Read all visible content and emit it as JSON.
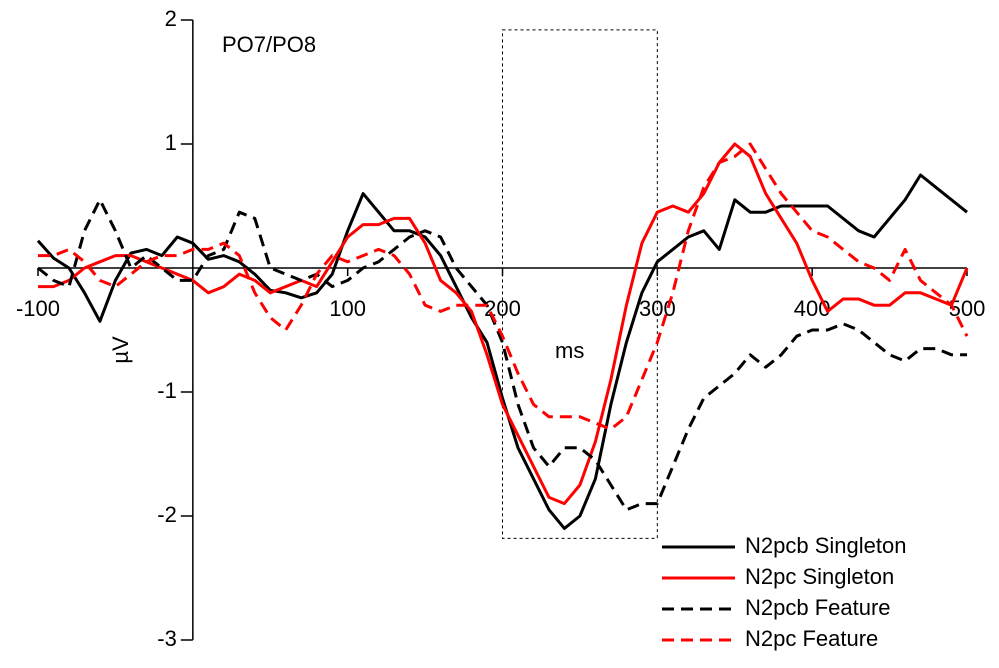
{
  "chart_data": {
    "type": "line",
    "title": "PO7/PO8",
    "x_label": "ms",
    "y_label": "µV",
    "x": [
      -100,
      -90,
      -80,
      -70,
      -60,
      -50,
      -40,
      -30,
      -20,
      -10,
      0,
      10,
      20,
      30,
      40,
      50,
      60,
      70,
      80,
      90,
      100,
      110,
      120,
      130,
      140,
      150,
      160,
      170,
      180,
      190,
      200,
      210,
      220,
      230,
      240,
      250,
      260,
      270,
      280,
      290,
      300,
      310,
      320,
      330,
      340,
      350,
      360,
      370,
      380,
      390,
      400,
      410,
      420,
      430,
      440,
      450,
      460,
      470,
      480,
      490,
      500
    ],
    "xlim": [
      -100,
      500
    ],
    "xticks": [
      -100,
      100,
      200,
      300,
      400,
      500
    ],
    "ylim": [
      -3,
      2
    ],
    "yticks": [
      -3,
      -2,
      -1,
      1,
      2
    ],
    "highlight": {
      "xlim": [
        200,
        300
      ],
      "ylim": [
        -2.18,
        1.92
      ]
    },
    "series": [
      {
        "name": "N2pcb Singleton",
        "color": "#000000",
        "dashed": false,
        "values": [
          0.22,
          0.08,
          0,
          -0.2,
          -0.43,
          -0.1,
          0.12,
          0.15,
          0.1,
          0.25,
          0.2,
          0.07,
          0.1,
          0.05,
          -0.05,
          -0.18,
          -0.2,
          -0.24,
          -0.2,
          -0.05,
          0.3,
          0.6,
          0.45,
          0.3,
          0.3,
          0.25,
          0.1,
          -0.15,
          -0.4,
          -0.6,
          -1.05,
          -1.45,
          -1.7,
          -1.95,
          -2.1,
          -2.0,
          -1.7,
          -1.1,
          -0.6,
          -0.2,
          0.05,
          0.15,
          0.25,
          0.3,
          0.15,
          0.55,
          0.45,
          0.45,
          0.5,
          0.5,
          0.5,
          0.5,
          0.4,
          0.3,
          0.25,
          0.4,
          0.55,
          0.75,
          0.65,
          0.55,
          0.45
        ]
      },
      {
        "name": "N2pc Singleton",
        "color": "#ff0000",
        "dashed": false,
        "values": [
          -0.15,
          -0.15,
          -0.1,
          0,
          0.05,
          0.1,
          0.1,
          0.05,
          0,
          -0.05,
          -0.1,
          -0.2,
          -0.15,
          -0.05,
          -0.1,
          -0.2,
          -0.15,
          -0.1,
          -0.15,
          0.05,
          0.25,
          0.35,
          0.35,
          0.4,
          0.4,
          0.2,
          -0.1,
          -0.2,
          -0.35,
          -0.7,
          -1.1,
          -1.35,
          -1.6,
          -1.85,
          -1.9,
          -1.75,
          -1.4,
          -0.9,
          -0.3,
          0.2,
          0.45,
          0.5,
          0.45,
          0.6,
          0.85,
          1.0,
          0.9,
          0.6,
          0.4,
          0.2,
          -0.1,
          -0.35,
          -0.25,
          -0.25,
          -0.3,
          -0.3,
          -0.2,
          -0.2,
          -0.25,
          -0.3,
          0
        ]
      },
      {
        "name": "N2pcb Feature",
        "color": "#000000",
        "dashed": true,
        "values": [
          0,
          -0.1,
          -0.15,
          0.3,
          0.55,
          0.3,
          0,
          0.1,
          0,
          -0.1,
          -0.1,
          0.1,
          0.15,
          0.45,
          0.4,
          0,
          -0.05,
          -0.1,
          -0.05,
          -0.15,
          -0.1,
          0,
          0.05,
          0.15,
          0.25,
          0.3,
          0.25,
          0,
          -0.15,
          -0.3,
          -0.6,
          -1.1,
          -1.45,
          -1.6,
          -1.45,
          -1.45,
          -1.55,
          -1.75,
          -1.95,
          -1.9,
          -1.9,
          -1.6,
          -1.3,
          -1.05,
          -0.95,
          -0.85,
          -0.7,
          -0.8,
          -0.7,
          -0.55,
          -0.5,
          -0.5,
          -0.45,
          -0.5,
          -0.6,
          -0.7,
          -0.75,
          -0.65,
          -0.65,
          -0.7,
          -0.7
        ]
      },
      {
        "name": "N2pc Feature",
        "color": "#ff0000",
        "dashed": true,
        "values": [
          0.1,
          0.1,
          0.15,
          0.05,
          -0.1,
          -0.15,
          -0.05,
          0.05,
          0.1,
          0.1,
          0.15,
          0.15,
          0.2,
          0.1,
          -0.2,
          -0.4,
          -0.5,
          -0.3,
          -0.05,
          0.1,
          0.05,
          0.1,
          0.15,
          0.1,
          -0.05,
          -0.3,
          -0.35,
          -0.3,
          -0.3,
          -0.3,
          -0.55,
          -0.85,
          -1.1,
          -1.2,
          -1.2,
          -1.2,
          -1.25,
          -1.3,
          -1.2,
          -0.9,
          -0.6,
          -0.2,
          0.3,
          0.65,
          0.85,
          0.9,
          1.0,
          0.8,
          0.6,
          0.45,
          0.3,
          0.25,
          0.15,
          0.05,
          0,
          -0.1,
          0.15,
          -0.1,
          -0.2,
          -0.3,
          -0.55
        ]
      }
    ]
  }
}
